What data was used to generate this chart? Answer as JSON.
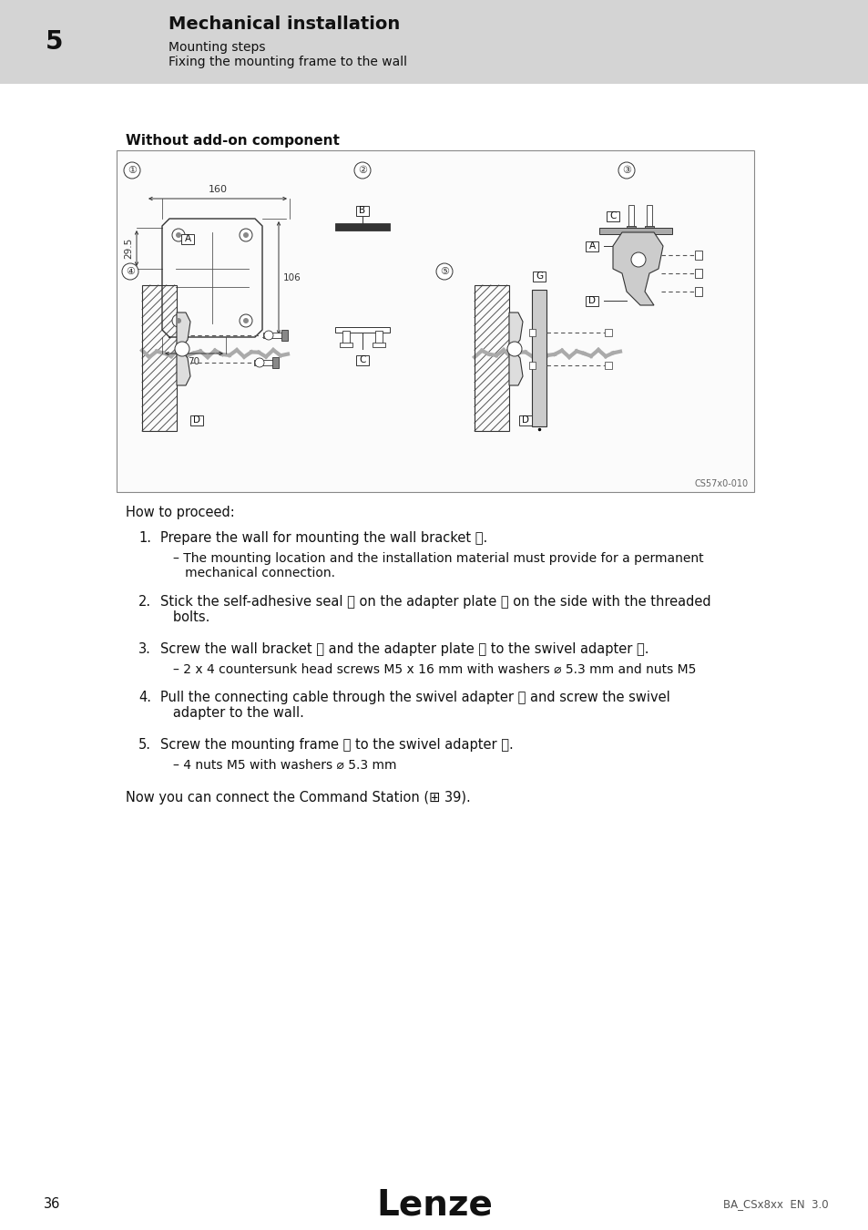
{
  "page_bg": "#ffffff",
  "header_bg": "#d4d4d4",
  "header_number": "5",
  "header_title": "Mechanical installation",
  "header_sub1": "Mounting steps",
  "header_sub2": "Fixing the mounting frame to the wall",
  "section_label": "Without add-on component",
  "diagram_caption": "CS57x0-010",
  "how_to_proceed": "How to proceed:",
  "step1_main": "Prepare the wall for mounting the wall bracket Ⓐ.",
  "step1_sub": "– The mounting location and the installation material must provide for a permanent\n   mechanical connection.",
  "step2_main": "Stick the self-adhesive seal Ⓑ on the adapter plate Ⓒ on the side with the threaded\n   bolts.",
  "step3_main": "Screw the wall bracket Ⓐ and the adapter plate Ⓒ to the swivel adapter Ⓓ.",
  "step3_sub": "– 2 x 4 countersunk head screws M5 x 16 mm with washers ⌀ 5.3 mm and nuts M5",
  "step4_main": "Pull the connecting cable through the swivel adapter Ⓓ and screw the swivel\n   adapter to the wall.",
  "step5_main": "Screw the mounting frame Ⓖ to the swivel adapter Ⓓ.",
  "step5_sub": "– 4 nuts M5 with washers ⌀ 5.3 mm",
  "closing": "Now you can connect the Command Station (⊞ 39).",
  "footer_page": "36",
  "footer_logo": "Lenze",
  "footer_doc": "BA_CSx8xx  EN  3.0",
  "dim_160": "160",
  "dim_295": "29.5",
  "dim_106": "106",
  "dim_70": "70"
}
